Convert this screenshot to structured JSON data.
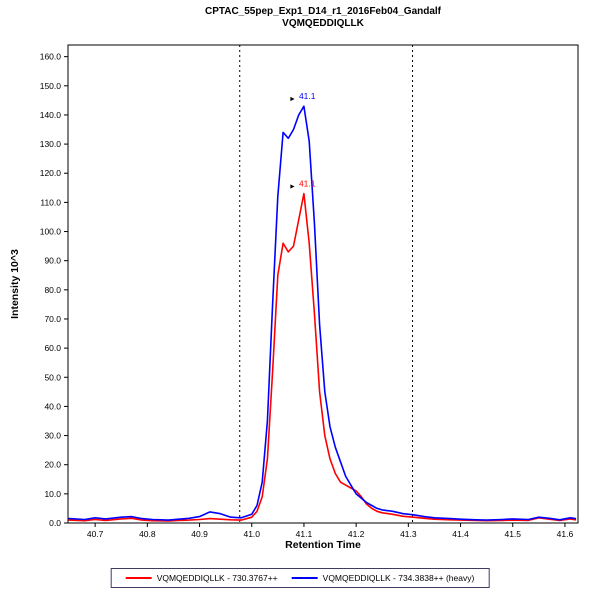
{
  "chart_data": {
    "type": "line",
    "title": "CPTAC_55pep_Exp1_D14_r1_2016Feb04_Gandalf",
    "subtitle": "VQMQEDDIQLLK",
    "xlabel": "Retention Time",
    "ylabel": "Intensity 10^3",
    "xlim": [
      40.648,
      41.625
    ],
    "ylim": [
      0,
      164
    ],
    "xticks": [
      40.7,
      40.8,
      40.9,
      41.0,
      41.1,
      41.2,
      41.3,
      41.4,
      41.5,
      41.6
    ],
    "yticks": [
      0,
      10,
      20,
      30,
      40,
      50,
      60,
      70,
      80,
      90,
      100,
      110,
      120,
      130,
      140,
      150,
      160
    ],
    "grid": false,
    "legend_position": "bottom",
    "integration_boundaries": [
      40.977,
      41.308
    ],
    "series": [
      {
        "name": "VQMQEDDIQLLK - 730.3767++",
        "color": "#ff0000",
        "peak": {
          "label": "41.1",
          "x": 41.1,
          "y": 113
        },
        "x": [
          40.65,
          40.68,
          40.7,
          40.72,
          40.75,
          40.77,
          40.79,
          40.81,
          40.84,
          40.86,
          40.88,
          40.9,
          40.92,
          40.94,
          40.96,
          40.98,
          41.0,
          41.01,
          41.02,
          41.03,
          41.04,
          41.05,
          41.06,
          41.07,
          41.08,
          41.09,
          41.1,
          41.11,
          41.12,
          41.13,
          41.14,
          41.15,
          41.16,
          41.17,
          41.18,
          41.19,
          41.2,
          41.21,
          41.22,
          41.23,
          41.24,
          41.25,
          41.27,
          41.29,
          41.31,
          41.33,
          41.35,
          41.38,
          41.4,
          41.43,
          41.45,
          41.48,
          41.5,
          41.53,
          41.55,
          41.57,
          41.59,
          41.61,
          41.62
        ],
        "y": [
          1.0,
          0.8,
          1.2,
          0.9,
          1.4,
          1.6,
          1.0,
          0.8,
          0.7,
          0.9,
          1.0,
          1.2,
          1.5,
          1.3,
          1.1,
          1.0,
          2.0,
          4,
          9,
          22,
          52,
          85,
          96,
          93,
          95,
          104,
          113,
          96,
          72,
          45,
          30,
          22,
          17,
          14,
          13,
          12,
          11,
          9,
          6.5,
          5,
          4,
          3.5,
          3,
          2.3,
          2.0,
          1.6,
          1.3,
          1.1,
          1.0,
          0.9,
          0.8,
          0.9,
          1.0,
          0.9,
          1.8,
          1.3,
          0.9,
          1.4,
          1.1
        ]
      },
      {
        "name": "VQMQEDDIQLLK - 734.3838++ (heavy)",
        "color": "#0000ff",
        "peak": {
          "label": "41.1",
          "x": 41.1,
          "y": 143
        },
        "x": [
          40.65,
          40.68,
          40.7,
          40.72,
          40.75,
          40.77,
          40.79,
          40.81,
          40.84,
          40.86,
          40.88,
          40.9,
          40.92,
          40.94,
          40.96,
          40.98,
          41.0,
          41.01,
          41.02,
          41.03,
          41.04,
          41.05,
          41.06,
          41.07,
          41.08,
          41.09,
          41.1,
          41.11,
          41.12,
          41.13,
          41.14,
          41.15,
          41.16,
          41.17,
          41.18,
          41.19,
          41.2,
          41.21,
          41.22,
          41.23,
          41.24,
          41.25,
          41.27,
          41.29,
          41.31,
          41.33,
          41.35,
          41.38,
          41.4,
          41.43,
          41.45,
          41.48,
          41.5,
          41.53,
          41.55,
          41.57,
          41.59,
          41.61,
          41.62
        ],
        "y": [
          1.5,
          1.2,
          1.8,
          1.4,
          2.0,
          2.2,
          1.5,
          1.2,
          1.0,
          1.3,
          1.6,
          2.2,
          3.8,
          3.2,
          2.0,
          1.8,
          3.0,
          6,
          14,
          35,
          75,
          112,
          134,
          132,
          135,
          140,
          143,
          131,
          103,
          68,
          45,
          33,
          26,
          21,
          16,
          13,
          10,
          8.5,
          7,
          6,
          5,
          4.5,
          4,
          3.2,
          2.8,
          2.2,
          1.8,
          1.5,
          1.3,
          1.1,
          1.0,
          1.2,
          1.4,
          1.2,
          2.0,
          1.6,
          1.1,
          1.8,
          1.5
        ]
      }
    ]
  }
}
